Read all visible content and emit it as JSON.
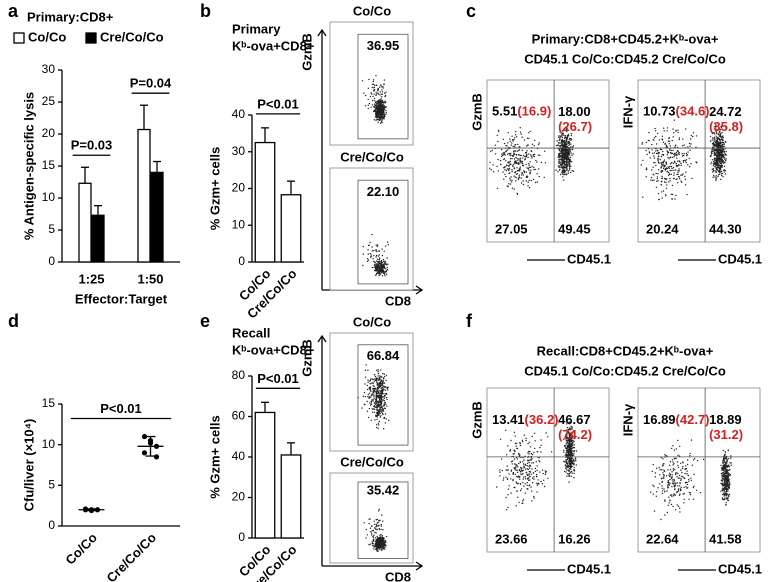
{
  "panel_letters": [
    "a",
    "b",
    "c",
    "d",
    "e",
    "f"
  ],
  "chart_data": [
    {
      "type": "bar",
      "title": "Primary:CD8+",
      "ylabel": "% Antigen-specific lysis",
      "xlabel": "Effector:Target",
      "categories": [
        "1:25",
        "1:50"
      ],
      "series": [
        {
          "name": "Co/Co",
          "color": "#ffffff",
          "values": [
            12.3,
            20.7
          ],
          "errors": [
            2.5,
            3.8
          ]
        },
        {
          "name": "Cre/Co/Co",
          "color": "#000000",
          "values": [
            7.3,
            14.0
          ],
          "errors": [
            1.5,
            1.7
          ]
        }
      ],
      "ylim": [
        0,
        30
      ],
      "yticks": [
        0,
        5,
        10,
        15,
        20,
        25,
        30
      ],
      "annotations": [
        "P=0.03",
        "P=0.04"
      ]
    },
    {
      "type": "bar",
      "title": [
        "Primary",
        "Kᵇ-ova+CD8+"
      ],
      "ylabel": "% Gzm+ cells",
      "categories": [
        "Co/Co",
        "Cre/Co/Co"
      ],
      "series": [
        {
          "color": "#ffffff",
          "values": [
            32.5,
            18.3
          ],
          "errors": [
            4.0,
            3.7
          ]
        }
      ],
      "ylim": [
        0,
        40
      ],
      "yticks": [
        0,
        10,
        20,
        30,
        40
      ],
      "annotation": "P<0.01"
    },
    {
      "type": "scatter",
      "ylabel": "Cfu/liver (×10⁴)",
      "categories": [
        "Co/Co",
        "Cre/Co/Co"
      ],
      "points": [
        [
          2.0,
          1.9,
          2.0,
          2.1,
          2.0
        ],
        [
          11.0,
          10.5,
          9.8,
          9.0,
          10.2,
          8.5
        ]
      ],
      "means": [
        2.0,
        9.8
      ],
      "sds": [
        0.1,
        1.2
      ],
      "color": "#000000",
      "ylim": [
        0,
        15
      ],
      "yticks": [
        0,
        5,
        10,
        15
      ],
      "annotation": "P<0.01"
    },
    {
      "type": "bar",
      "title": [
        "Recall",
        "Kᵇ-ova+CD8+"
      ],
      "ylabel": "% Gzm+ cells",
      "categories": [
        "Co/Co",
        "Cre/Co/Co"
      ],
      "series": [
        {
          "color": "#ffffff",
          "values": [
            62.0,
            41.0
          ],
          "errors": [
            5.0,
            6.0
          ]
        }
      ],
      "ylim": [
        0,
        80
      ],
      "yticks": [
        0,
        20,
        40,
        60,
        80
      ],
      "annotation": "P<0.01"
    }
  ],
  "flow_b": {
    "y_label": "GzmB",
    "x_label": "CD8",
    "plots": [
      {
        "title": "Co/Co",
        "gate": "36.95"
      },
      {
        "title": "Cre/Co/Co",
        "gate": "22.10"
      }
    ]
  },
  "flow_e": {
    "y_label": "GzmB",
    "x_label": "CD8",
    "plots": [
      {
        "title": "Co/Co",
        "gate": "66.84"
      },
      {
        "title": "Cre/Co/Co",
        "gate": "35.42"
      }
    ]
  },
  "flow_c": {
    "title": [
      "Primary:CD8+CD45.2+Kᵇ-ova+",
      "CD45.1 Co/Co:CD45.2 Cre/Co/Co"
    ],
    "x_label": "CD45.1",
    "plots": [
      {
        "y_label": "GzmB",
        "ul": [
          "5.51",
          "(16.9)"
        ],
        "ur": [
          "18.00",
          "(26.7)"
        ],
        "ll": "27.05",
        "lr": "49.45"
      },
      {
        "y_label": "IFN-γ",
        "ul": [
          "10.73",
          "(34.6)"
        ],
        "ur": [
          "24.72",
          "(35.8)"
        ],
        "ll": "20.24",
        "lr": "44.30"
      }
    ]
  },
  "flow_f": {
    "title": [
      "Recall:CD8+CD45.2+Kᵇ-ova+",
      "CD45.1 Co/Co:CD45.2 Cre/Co/Co"
    ],
    "x_label": "CD45.1",
    "plots": [
      {
        "y_label": "GzmB",
        "ul": [
          "13.41",
          "(36.2)"
        ],
        "ur": [
          "46.67",
          "(74.2)"
        ],
        "ll": "23.66",
        "lr": "16.26"
      },
      {
        "y_label": "IFN-γ",
        "ul": [
          "16.89",
          "(42.7)"
        ],
        "ur": [
          "18.89",
          "(31.2)"
        ],
        "ll": "22.64",
        "lr": "41.58"
      }
    ]
  }
}
